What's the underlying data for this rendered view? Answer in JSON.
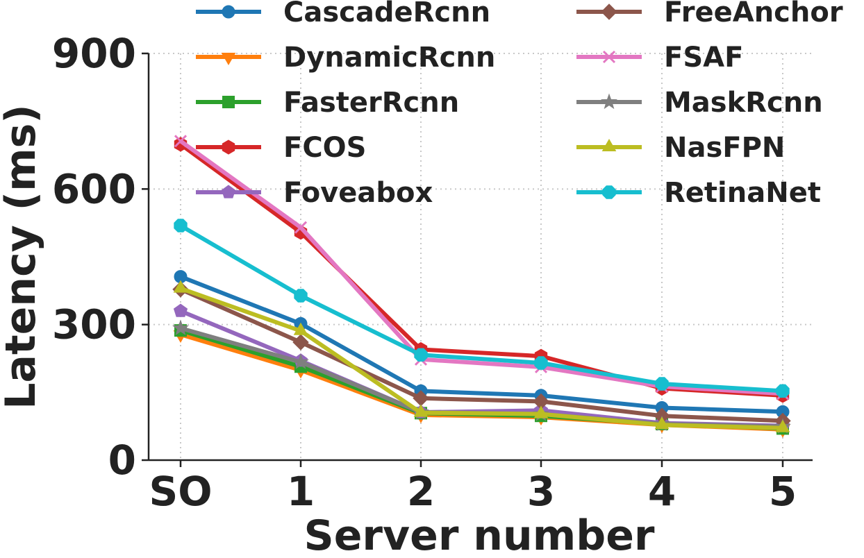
{
  "chart_data": {
    "type": "line",
    "title": "",
    "xlabel": "Server number",
    "ylabel": "Latency (ms)",
    "categories": [
      "SO",
      "1",
      "2",
      "3",
      "4",
      "5"
    ],
    "ylim": [
      0,
      900
    ],
    "yticks": [
      0,
      300,
      600,
      900
    ],
    "grid": true,
    "legend_position": "top",
    "series": [
      {
        "name": "CascadeRcnn",
        "color": "#1f77b4",
        "marker": "circle",
        "values": [
          406,
          302,
          153,
          143,
          116,
          107
        ]
      },
      {
        "name": "DynamicRcnn",
        "color": "#ff7f0e",
        "marker": "triangle-down",
        "values": [
          278,
          199,
          100,
          95,
          78,
          68
        ]
      },
      {
        "name": "FasterRcnn",
        "color": "#2ca02c",
        "marker": "square",
        "values": [
          287,
          207,
          104,
          98,
          80,
          70
        ]
      },
      {
        "name": "FCOS",
        "color": "#d62728",
        "marker": "hexagon",
        "values": [
          699,
          504,
          245,
          230,
          159,
          143
        ]
      },
      {
        "name": "Foveabox",
        "color": "#9467bd",
        "marker": "pentagon",
        "values": [
          330,
          220,
          106,
          110,
          82,
          76
        ]
      },
      {
        "name": "FreeAnchor",
        "color": "#8c564b",
        "marker": "diamond",
        "values": [
          378,
          261,
          137,
          130,
          98,
          87
        ]
      },
      {
        "name": "FSAF",
        "color": "#e377c2",
        "marker": "x",
        "values": [
          706,
          515,
          223,
          206,
          163,
          147
        ]
      },
      {
        "name": "MaskRcnn",
        "color": "#7f7f7f",
        "marker": "star",
        "values": [
          292,
          217,
          106,
          102,
          80,
          74
        ]
      },
      {
        "name": "NasFPN",
        "color": "#bcbd22",
        "marker": "triangle-up",
        "values": [
          380,
          286,
          105,
          102,
          78,
          71
        ]
      },
      {
        "name": "RetinaNet",
        "color": "#17becf",
        "marker": "octagon",
        "values": [
          519,
          364,
          233,
          215,
          169,
          153
        ]
      }
    ]
  }
}
